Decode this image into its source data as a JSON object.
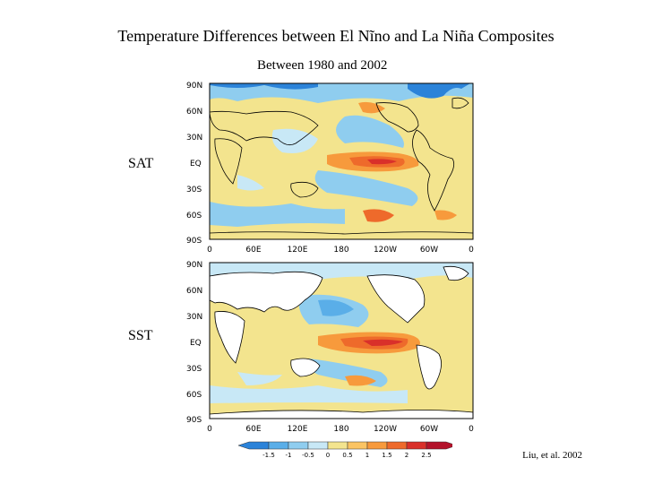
{
  "title": "Temperature Differences between El Nĩno and La Niña Composites",
  "subtitle": "Between 1980 and 2002",
  "credit": "Liu, et al. 2002",
  "panels": [
    {
      "label": "SAT"
    },
    {
      "label": "SST"
    }
  ],
  "axis": {
    "lat_ticks": [
      "90N",
      "60N",
      "30N",
      "EQ",
      "30S",
      "60S",
      "90S"
    ],
    "lon_ticks": [
      "0",
      "60E",
      "120E",
      "180",
      "120W",
      "60W",
      "0"
    ]
  },
  "colorbar": {
    "labels": [
      "-1.5",
      "-1",
      "-0.5",
      "0",
      "0.5",
      "1",
      "1.5",
      "2",
      "2.5"
    ],
    "colors": [
      "#2b83d9",
      "#5aaee8",
      "#8fcdef",
      "#c8e8f6",
      "#f3e48e",
      "#fbc463",
      "#f79a3c",
      "#ee6a2b",
      "#d9302a",
      "#b3122a"
    ]
  },
  "colors": {
    "deep_blue": "#2b83d9",
    "light_blue": "#8fcdef",
    "pale_blue": "#c8e8f6",
    "yellow": "#f3e48e",
    "orange": "#f79a3c",
    "red": "#d9302a",
    "land": "#ffffff"
  }
}
